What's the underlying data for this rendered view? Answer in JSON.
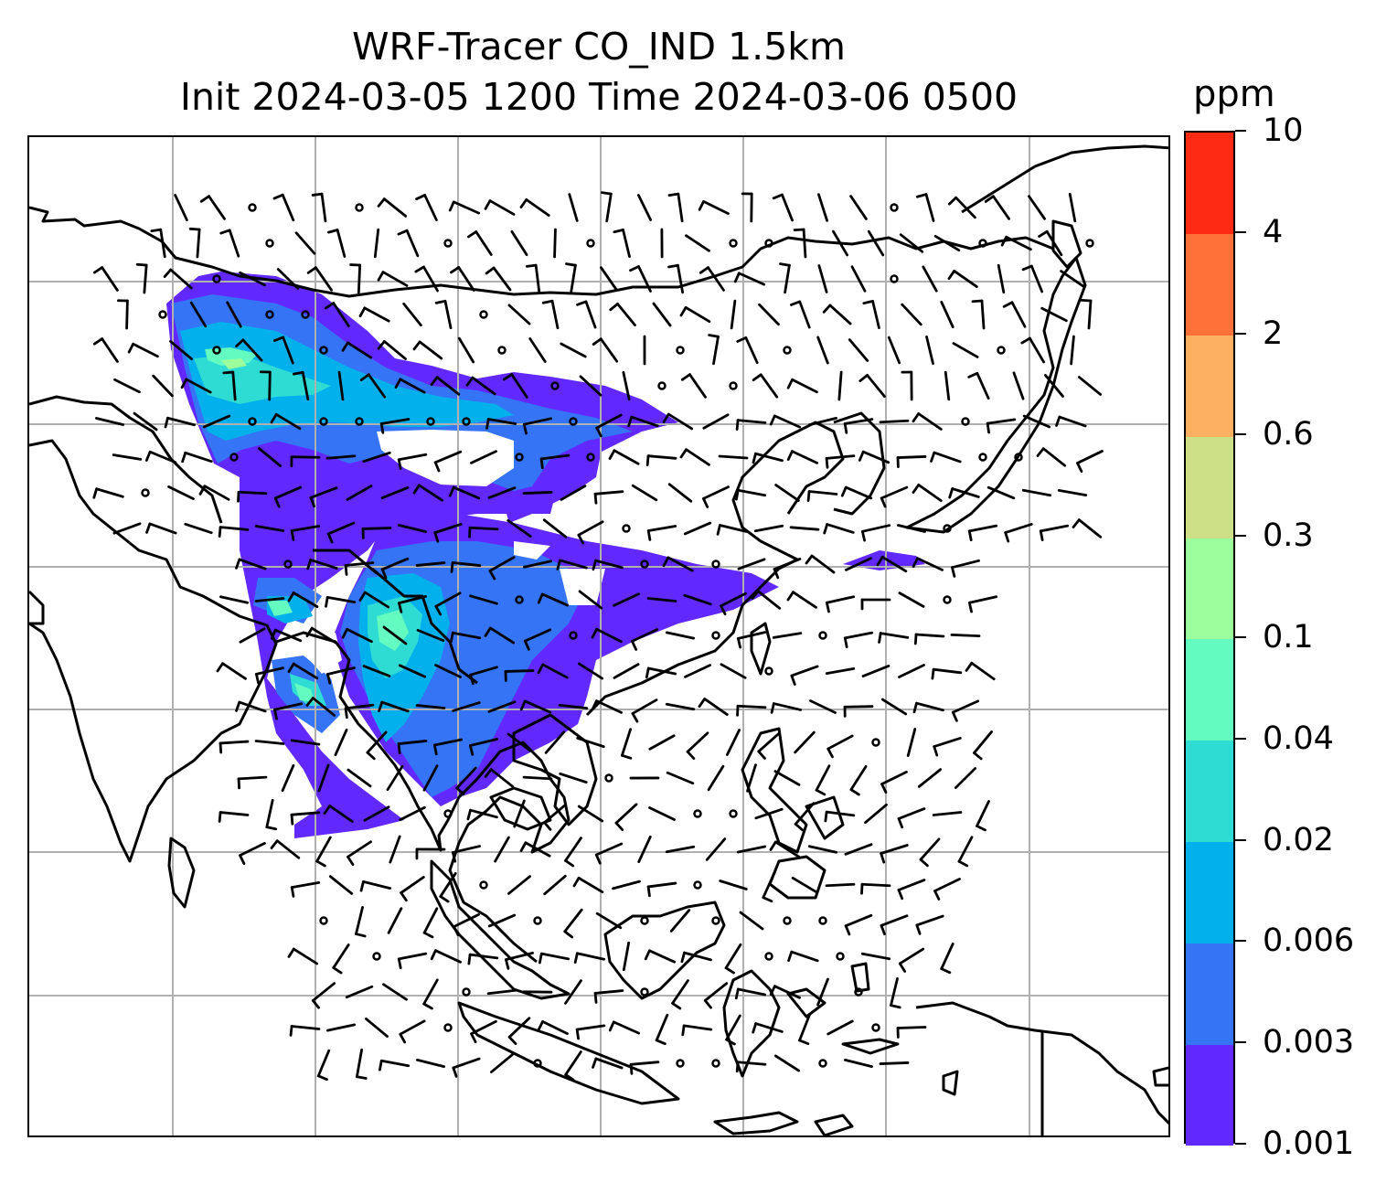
{
  "title": {
    "line1": "WRF-Tracer CO_IND 1.5km",
    "line2": "Init 2024-03-05 1200 Time 2024-03-06 0500"
  },
  "colorbar": {
    "units": "ppm",
    "levels": [
      "0.001",
      "0.003",
      "0.006",
      "0.02",
      "0.04",
      "0.1",
      "0.3",
      "0.6",
      "2",
      "4",
      "10"
    ],
    "colors": [
      "#6229ff",
      "#3574f4",
      "#02b0ec",
      "#2fdcd4",
      "#63fbbf",
      "#9bfd9b",
      "#cde088",
      "#fdb160",
      "#ff7139",
      "#ff2a14"
    ]
  },
  "map": {
    "variable": "CO_IND",
    "gridlines": true,
    "wind_barbs": true,
    "colors": {
      "coastline": "#000000",
      "grid": "#b0b0b0"
    }
  }
}
